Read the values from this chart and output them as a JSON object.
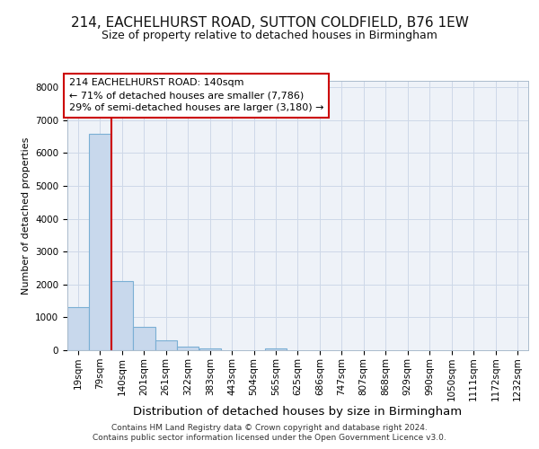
{
  "title1": "214, EACHELHURST ROAD, SUTTON COLDFIELD, B76 1EW",
  "title2": "Size of property relative to detached houses in Birmingham",
  "xlabel": "Distribution of detached houses by size in Birmingham",
  "ylabel": "Number of detached properties",
  "footer1": "Contains HM Land Registry data © Crown copyright and database right 2024.",
  "footer2": "Contains public sector information licensed under the Open Government Licence v3.0.",
  "annotation_line1": "214 EACHELHURST ROAD: 140sqm",
  "annotation_line2": "← 71% of detached houses are smaller (7,786)",
  "annotation_line3": "29% of semi-detached houses are larger (3,180) →",
  "bins": [
    19,
    79,
    140,
    201,
    261,
    322,
    383,
    443,
    504,
    565,
    625,
    686,
    747,
    807,
    868,
    929,
    990,
    1050,
    1111,
    1172,
    1232
  ],
  "values": [
    1300,
    6600,
    2100,
    700,
    290,
    110,
    60,
    0,
    0,
    60,
    0,
    0,
    0,
    0,
    0,
    0,
    0,
    0,
    0,
    0
  ],
  "bar_color": "#c8d8ec",
  "bar_edge_color": "#7aafd4",
  "vline_color": "#cc0000",
  "vline_x_idx": 2,
  "grid_color": "#cdd8e8",
  "bg_color": "#eef2f8",
  "ylim": [
    0,
    8200
  ],
  "yticks": [
    0,
    1000,
    2000,
    3000,
    4000,
    5000,
    6000,
    7000,
    8000
  ],
  "title1_fontsize": 11,
  "title2_fontsize": 9,
  "xlabel_fontsize": 9.5,
  "ylabel_fontsize": 8,
  "tick_fontsize": 7.5,
  "footer_fontsize": 6.5
}
